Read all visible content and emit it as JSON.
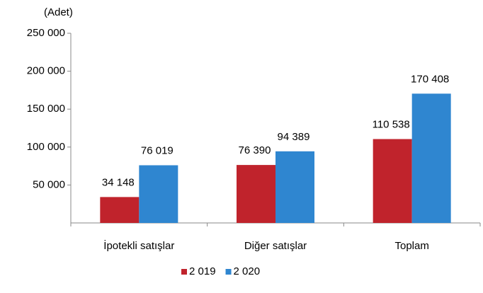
{
  "chart_data": {
    "type": "bar",
    "unit_label": "(Adet)",
    "categories": [
      "İpotekli satışlar",
      "Diğer satışlar",
      "Toplam"
    ],
    "series": [
      {
        "name": "2 019",
        "color": "#c0232c",
        "values": [
          34148,
          76390,
          110538
        ],
        "value_labels": [
          "34 148",
          "76 390",
          "110 538"
        ]
      },
      {
        "name": "2 020",
        "color": "#2f86d0",
        "values": [
          76019,
          94389,
          170408
        ],
        "value_labels": [
          "76 019",
          "94 389",
          "170 408"
        ]
      }
    ],
    "ylim": [
      0,
      250000
    ],
    "yticks": [
      {
        "value": 50000,
        "label": "50 000"
      },
      {
        "value": 100000,
        "label": "100 000"
      },
      {
        "value": 150000,
        "label": "150 000"
      },
      {
        "value": 200000,
        "label": "200 000"
      },
      {
        "value": 250000,
        "label": "250 000"
      }
    ],
    "grid": false,
    "legend": "bottom"
  }
}
